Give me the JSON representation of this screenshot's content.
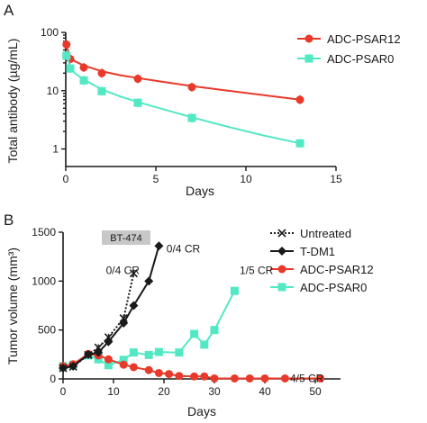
{
  "chart_data": [
    {
      "type": "scatter",
      "panel_label": "A",
      "xlabel": "Days",
      "ylabel": "Total antibody (µg/mL)",
      "y_scale": "log",
      "xlim": [
        0,
        15
      ],
      "ylim": [
        0.5,
        100
      ],
      "x_ticks": [
        "0",
        "5",
        "10",
        "15"
      ],
      "y_ticks": [
        "1",
        "10",
        "100"
      ],
      "legend_position": "top-right",
      "series": [
        {
          "name": "ADC-PSAR12",
          "color": "#e8392a",
          "marker": "circle",
          "points": [
            [
              0.04,
              62
            ],
            [
              0.25,
              35
            ],
            [
              1,
              25
            ],
            [
              2,
              20
            ],
            [
              4,
              16
            ],
            [
              7,
              11.5
            ],
            [
              13,
              7
            ]
          ],
          "fit_curve": [
            [
              0.04,
              58
            ],
            [
              0.25,
              38
            ],
            [
              0.5,
              32
            ],
            [
              1,
              27
            ],
            [
              2,
              21.5
            ],
            [
              3,
              18.5
            ],
            [
              4,
              16.5
            ],
            [
              5,
              14.8
            ],
            [
              7,
              12
            ],
            [
              9,
              10
            ],
            [
              11,
              8.4
            ],
            [
              13,
              7
            ]
          ]
        },
        {
          "name": "ADC-PSAR0",
          "color": "#52e8c4",
          "marker": "square",
          "points": [
            [
              0.04,
              40
            ],
            [
              0.25,
              24
            ],
            [
              1,
              15
            ],
            [
              2,
              9.8
            ],
            [
              4,
              6.2
            ],
            [
              7,
              3.4
            ],
            [
              13,
              1.25
            ]
          ],
          "fit_curve": [
            [
              0.04,
              42
            ],
            [
              0.25,
              25
            ],
            [
              0.5,
              20
            ],
            [
              1,
              15.5
            ],
            [
              2,
              10.5
            ],
            [
              3,
              8
            ],
            [
              4,
              6.4
            ],
            [
              5,
              5.2
            ],
            [
              7,
              3.5
            ],
            [
              9,
              2.4
            ],
            [
              11,
              1.7
            ],
            [
              13,
              1.25
            ]
          ]
        }
      ]
    },
    {
      "type": "line",
      "panel_label": "B",
      "xlabel": "Days",
      "ylabel": "Tumor volume (mm³)",
      "xlim": [
        0,
        55
      ],
      "ylim": [
        0,
        1500
      ],
      "x_ticks": [
        "0",
        "10",
        "20",
        "30",
        "40",
        "50"
      ],
      "y_ticks": [
        "0",
        "500",
        "1000",
        "1500"
      ],
      "cell_line_badge": "BT-474",
      "legend_position": "top-right",
      "series": [
        {
          "name": "Untreated",
          "color": "#1a1a1a",
          "marker": "x",
          "dashed": true,
          "points": [
            [
              0,
              110
            ],
            [
              2,
              125
            ],
            [
              5,
              245
            ],
            [
              7,
              320
            ],
            [
              9,
              425
            ],
            [
              12,
              620
            ],
            [
              14,
              1080
            ]
          ]
        },
        {
          "name": "T-DM1",
          "color": "#1a1a1a",
          "marker": "diamond",
          "points": [
            [
              0,
              110
            ],
            [
              2,
              130
            ],
            [
              5,
              250
            ],
            [
              7,
              270
            ],
            [
              9,
              380
            ],
            [
              12,
              570
            ],
            [
              14,
              750
            ],
            [
              17,
              1000
            ],
            [
              19,
              1360
            ]
          ]
        },
        {
          "name": "ADC-PSAR12",
          "color": "#e8392a",
          "marker": "circle",
          "points": [
            [
              0,
              130
            ],
            [
              2,
              150
            ],
            [
              5,
              255
            ],
            [
              7,
              240
            ],
            [
              9,
              200
            ],
            [
              12,
              145
            ],
            [
              14,
              120
            ],
            [
              17,
              90
            ],
            [
              19,
              60
            ],
            [
              21,
              50
            ],
            [
              23,
              30
            ],
            [
              26,
              25
            ],
            [
              28,
              25
            ],
            [
              30,
              5
            ],
            [
              34,
              5
            ],
            [
              37,
              5
            ],
            [
              40,
              5
            ],
            [
              44,
              5
            ],
            [
              51,
              5
            ]
          ]
        },
        {
          "name": "ADC-PSAR0",
          "color": "#52e8c4",
          "marker": "square",
          "points": [
            [
              0,
              130
            ],
            [
              2,
              145
            ],
            [
              5,
              240
            ],
            [
              7,
              200
            ],
            [
              9,
              140
            ],
            [
              12,
              195
            ],
            [
              14,
              270
            ],
            [
              17,
              245
            ],
            [
              19,
              275
            ],
            [
              23,
              270
            ],
            [
              26,
              460
            ],
            [
              28,
              350
            ],
            [
              30,
              500
            ],
            [
              34,
              900
            ]
          ]
        }
      ],
      "annotations": [
        {
          "text": "0/4 CR",
          "x": 8.5,
          "y": 1110,
          "color": "#1a1a1a"
        },
        {
          "text": "0/4 CR",
          "x": 20.5,
          "y": 1330,
          "color": "#1a1a1a"
        },
        {
          "text": "1/5 CR",
          "x": 35,
          "y": 1110,
          "color": "#52e8c4"
        },
        {
          "text": "4/5 CR",
          "x": 45,
          "y": 5,
          "color": "#e8392a"
        }
      ]
    }
  ]
}
